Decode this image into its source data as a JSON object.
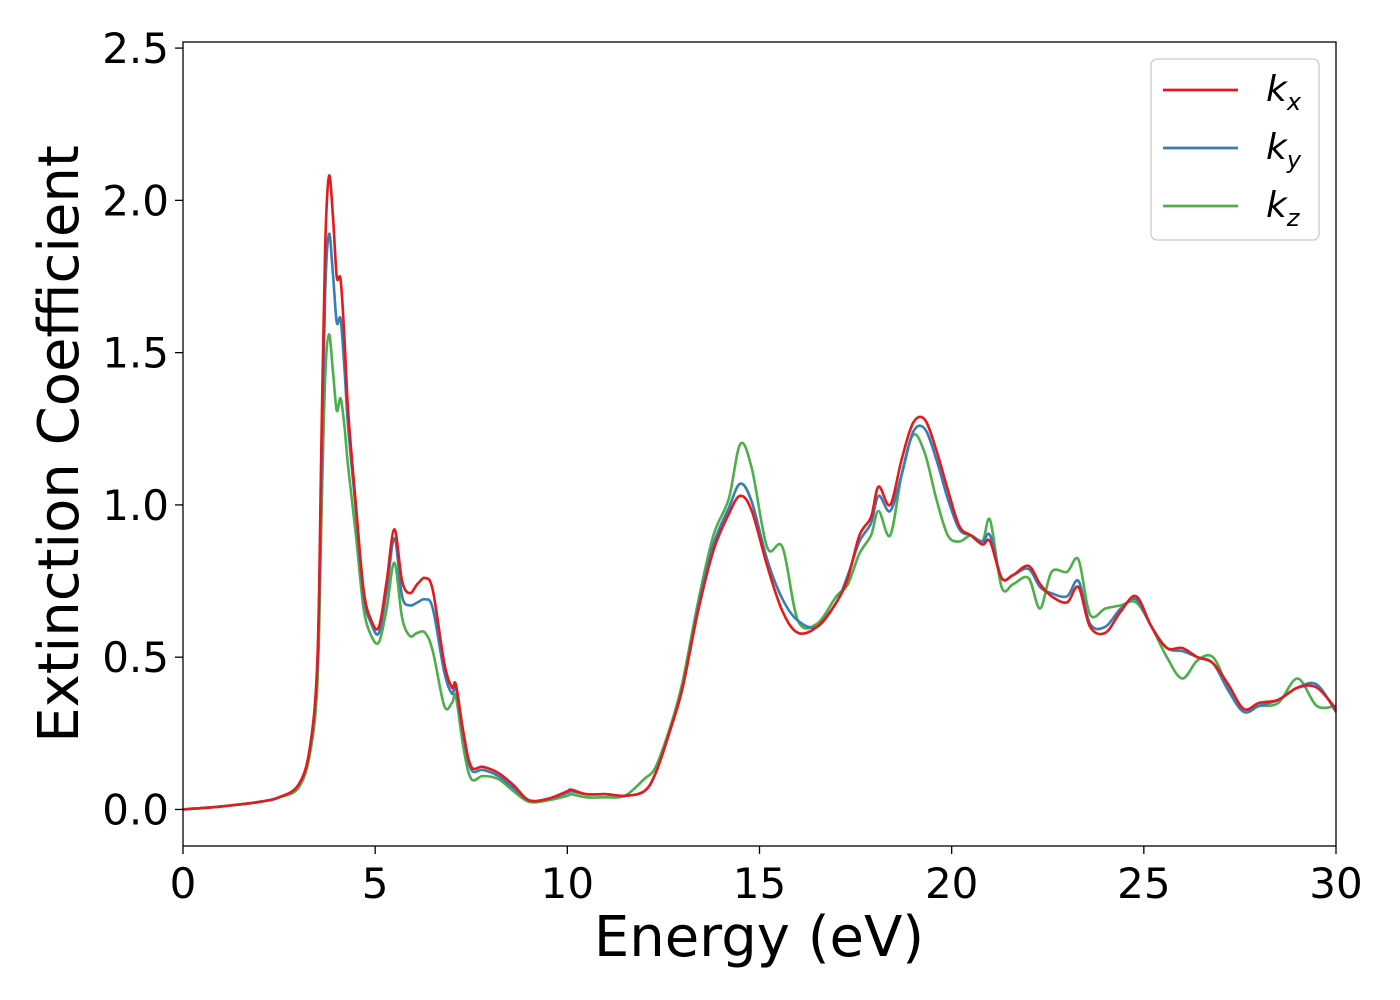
{
  "chart_data": {
    "type": "line",
    "xlabel": "Energy (eV)",
    "ylabel": "Extinction Coefficient",
    "xlim": [
      0,
      30
    ],
    "ylim": [
      -0.12,
      2.52
    ],
    "xticks": [
      0,
      5,
      10,
      15,
      20,
      25,
      30
    ],
    "xtick_labels": [
      "0",
      "5",
      "10",
      "15",
      "20",
      "25",
      "30"
    ],
    "yticks": [
      0.0,
      0.5,
      1.0,
      1.5,
      2.0,
      2.5
    ],
    "ytick_labels": [
      "0.0",
      "0.5",
      "1.0",
      "1.5",
      "2.0",
      "2.5"
    ],
    "grid": false,
    "legend_position": "top-right",
    "series": [
      {
        "name": "k_x",
        "label_main": "k",
        "label_sub": "x",
        "color": "#e41a1c",
        "x": [
          0,
          1,
          2,
          2.5,
          3,
          3.3,
          3.5,
          3.6,
          3.7,
          3.8,
          3.9,
          4.0,
          4.1,
          4.2,
          4.3,
          4.5,
          4.7,
          4.9,
          5.1,
          5.3,
          5.5,
          5.7,
          5.9,
          6.1,
          6.3,
          6.5,
          6.8,
          7.0,
          7.1,
          7.3,
          7.5,
          7.8,
          8.2,
          8.6,
          9.0,
          9.5,
          10.0,
          10.1,
          10.5,
          11.0,
          11.5,
          12.0,
          12.3,
          12.7,
          13.0,
          13.4,
          13.8,
          14.2,
          14.5,
          14.8,
          15.2,
          15.6,
          16.0,
          16.5,
          17.0,
          17.3,
          17.6,
          17.9,
          18.1,
          18.4,
          18.7,
          19.0,
          19.3,
          19.6,
          19.9,
          20.2,
          20.5,
          20.8,
          21.0,
          21.3,
          21.6,
          22.0,
          22.3,
          22.6,
          23.0,
          23.3,
          23.6,
          24.0,
          24.4,
          24.8,
          25.2,
          25.6,
          26.0,
          26.4,
          26.8,
          27.2,
          27.6,
          28.0,
          28.5,
          29.0,
          29.5,
          30.0
        ],
        "y": [
          0.0,
          0.01,
          0.025,
          0.04,
          0.08,
          0.2,
          0.5,
          1.2,
          1.85,
          2.08,
          1.95,
          1.75,
          1.74,
          1.55,
          1.3,
          1.0,
          0.72,
          0.62,
          0.6,
          0.75,
          0.92,
          0.75,
          0.71,
          0.74,
          0.76,
          0.72,
          0.48,
          0.4,
          0.41,
          0.25,
          0.14,
          0.14,
          0.12,
          0.08,
          0.03,
          0.035,
          0.06,
          0.065,
          0.05,
          0.05,
          0.045,
          0.06,
          0.12,
          0.27,
          0.4,
          0.65,
          0.85,
          0.97,
          1.03,
          0.98,
          0.8,
          0.65,
          0.58,
          0.6,
          0.68,
          0.76,
          0.9,
          0.96,
          1.06,
          1.0,
          1.15,
          1.27,
          1.28,
          1.18,
          1.05,
          0.93,
          0.9,
          0.87,
          0.88,
          0.76,
          0.77,
          0.8,
          0.74,
          0.7,
          0.68,
          0.73,
          0.6,
          0.58,
          0.65,
          0.7,
          0.6,
          0.53,
          0.53,
          0.5,
          0.48,
          0.41,
          0.33,
          0.35,
          0.36,
          0.4,
          0.4,
          0.33
        ]
      },
      {
        "name": "k_y",
        "label_main": "k",
        "label_sub": "y",
        "color": "#377eb8",
        "x": [
          0,
          1,
          2,
          2.5,
          3,
          3.3,
          3.5,
          3.6,
          3.7,
          3.8,
          3.9,
          4.0,
          4.1,
          4.2,
          4.3,
          4.5,
          4.7,
          4.9,
          5.1,
          5.3,
          5.5,
          5.7,
          5.9,
          6.1,
          6.3,
          6.5,
          6.8,
          7.0,
          7.1,
          7.3,
          7.5,
          7.8,
          8.2,
          8.6,
          9.0,
          9.5,
          10.0,
          10.1,
          10.5,
          11.0,
          11.5,
          12.0,
          12.3,
          12.7,
          13.0,
          13.4,
          13.8,
          14.2,
          14.5,
          14.8,
          15.2,
          15.6,
          16.0,
          16.5,
          17.0,
          17.3,
          17.6,
          17.9,
          18.1,
          18.4,
          18.7,
          19.0,
          19.3,
          19.6,
          19.9,
          20.2,
          20.5,
          20.8,
          21.0,
          21.3,
          21.6,
          22.0,
          22.3,
          22.6,
          23.0,
          23.3,
          23.6,
          24.0,
          24.4,
          24.8,
          25.2,
          25.6,
          26.0,
          26.4,
          26.8,
          27.2,
          27.6,
          28.0,
          28.5,
          29.0,
          29.5,
          30.0
        ],
        "y": [
          0.0,
          0.01,
          0.025,
          0.04,
          0.08,
          0.2,
          0.48,
          1.1,
          1.7,
          1.89,
          1.76,
          1.6,
          1.61,
          1.45,
          1.25,
          0.98,
          0.7,
          0.61,
          0.58,
          0.72,
          0.89,
          0.7,
          0.67,
          0.68,
          0.69,
          0.66,
          0.45,
          0.38,
          0.4,
          0.24,
          0.13,
          0.13,
          0.11,
          0.07,
          0.03,
          0.035,
          0.055,
          0.06,
          0.05,
          0.05,
          0.045,
          0.06,
          0.12,
          0.27,
          0.4,
          0.66,
          0.87,
          0.99,
          1.07,
          1.01,
          0.82,
          0.69,
          0.62,
          0.6,
          0.68,
          0.77,
          0.88,
          0.94,
          1.03,
          0.98,
          1.1,
          1.24,
          1.25,
          1.15,
          1.02,
          0.92,
          0.9,
          0.88,
          0.9,
          0.76,
          0.77,
          0.79,
          0.73,
          0.71,
          0.7,
          0.75,
          0.61,
          0.6,
          0.66,
          0.69,
          0.6,
          0.53,
          0.52,
          0.5,
          0.48,
          0.39,
          0.32,
          0.34,
          0.36,
          0.4,
          0.41,
          0.32
        ]
      },
      {
        "name": "k_z",
        "label_main": "k",
        "label_sub": "z",
        "color": "#4daf4a",
        "x": [
          0,
          1,
          2,
          2.5,
          3,
          3.3,
          3.5,
          3.6,
          3.7,
          3.8,
          3.9,
          4.0,
          4.1,
          4.2,
          4.3,
          4.5,
          4.7,
          4.9,
          5.1,
          5.3,
          5.5,
          5.7,
          5.9,
          6.1,
          6.3,
          6.5,
          6.8,
          7.0,
          7.1,
          7.3,
          7.5,
          7.8,
          8.2,
          8.6,
          9.0,
          9.5,
          10.0,
          10.1,
          10.5,
          11.0,
          11.5,
          12.0,
          12.3,
          12.7,
          13.0,
          13.4,
          13.8,
          14.2,
          14.5,
          14.8,
          15.2,
          15.6,
          16.0,
          16.5,
          17.0,
          17.3,
          17.6,
          17.9,
          18.1,
          18.4,
          18.7,
          19.0,
          19.3,
          19.6,
          19.9,
          20.2,
          20.5,
          20.8,
          21.0,
          21.3,
          21.6,
          22.0,
          22.3,
          22.6,
          23.0,
          23.3,
          23.6,
          24.0,
          24.4,
          24.8,
          25.2,
          25.6,
          26.0,
          26.4,
          26.8,
          27.2,
          27.6,
          28.0,
          28.5,
          29.0,
          29.5,
          30.0
        ],
        "y": [
          0.0,
          0.01,
          0.025,
          0.04,
          0.07,
          0.18,
          0.42,
          0.95,
          1.42,
          1.56,
          1.44,
          1.31,
          1.35,
          1.26,
          1.12,
          0.9,
          0.66,
          0.57,
          0.55,
          0.66,
          0.81,
          0.63,
          0.57,
          0.58,
          0.58,
          0.52,
          0.34,
          0.35,
          0.37,
          0.2,
          0.1,
          0.11,
          0.1,
          0.06,
          0.025,
          0.03,
          0.045,
          0.05,
          0.04,
          0.04,
          0.045,
          0.1,
          0.14,
          0.28,
          0.42,
          0.68,
          0.9,
          1.02,
          1.2,
          1.12,
          0.86,
          0.86,
          0.62,
          0.61,
          0.7,
          0.74,
          0.84,
          0.9,
          0.98,
          0.9,
          1.1,
          1.23,
          1.17,
          1.02,
          0.9,
          0.88,
          0.9,
          0.88,
          0.95,
          0.73,
          0.74,
          0.76,
          0.66,
          0.78,
          0.78,
          0.82,
          0.64,
          0.66,
          0.67,
          0.68,
          0.6,
          0.5,
          0.43,
          0.49,
          0.5,
          0.4,
          0.33,
          0.34,
          0.35,
          0.43,
          0.34,
          0.34
        ]
      }
    ]
  }
}
